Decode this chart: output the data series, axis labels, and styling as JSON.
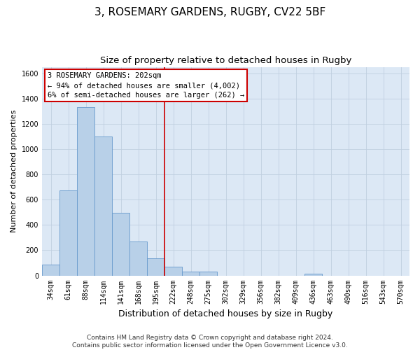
{
  "title": "3, ROSEMARY GARDENS, RUGBY, CV22 5BF",
  "subtitle": "Size of property relative to detached houses in Rugby",
  "xlabel": "Distribution of detached houses by size in Rugby",
  "ylabel": "Number of detached properties",
  "categories": [
    "34sqm",
    "61sqm",
    "88sqm",
    "114sqm",
    "141sqm",
    "168sqm",
    "195sqm",
    "222sqm",
    "248sqm",
    "275sqm",
    "302sqm",
    "329sqm",
    "356sqm",
    "382sqm",
    "409sqm",
    "436sqm",
    "463sqm",
    "490sqm",
    "516sqm",
    "543sqm",
    "570sqm"
  ],
  "values": [
    88,
    675,
    1330,
    1100,
    495,
    270,
    135,
    70,
    32,
    30,
    0,
    0,
    0,
    0,
    0,
    15,
    0,
    0,
    0,
    0,
    0
  ],
  "bar_color": "#b8d0e8",
  "bar_edge_color": "#6699cc",
  "vline_x": 6.5,
  "vline_color": "#cc0000",
  "annotation_text": "3 ROSEMARY GARDENS: 202sqm\n← 94% of detached houses are smaller (4,002)\n6% of semi-detached houses are larger (262) →",
  "annotation_box_color": "#ffffff",
  "annotation_box_edge_color": "#cc0000",
  "ylim": [
    0,
    1650
  ],
  "yticks": [
    0,
    200,
    400,
    600,
    800,
    1000,
    1200,
    1400,
    1600
  ],
  "plot_bg_color": "#dce8f5",
  "background_color": "#ffffff",
  "grid_color": "#c0cfe0",
  "footer_text": "Contains HM Land Registry data © Crown copyright and database right 2024.\nContains public sector information licensed under the Open Government Licence v3.0.",
  "title_fontsize": 11,
  "subtitle_fontsize": 9.5,
  "xlabel_fontsize": 9,
  "ylabel_fontsize": 8,
  "tick_fontsize": 7,
  "annotation_fontsize": 7.5,
  "footer_fontsize": 6.5
}
